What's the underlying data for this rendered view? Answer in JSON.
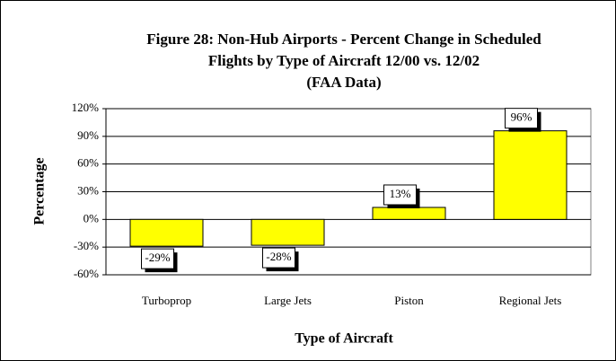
{
  "chart_data": {
    "type": "bar",
    "title": [
      "Figure 28:  Non-Hub Airports - Percent Change in Scheduled",
      "Flights by Type of Aircraft  12/00 vs. 12/02",
      "(FAA Data)"
    ],
    "y_label": "Percentage",
    "x_label": "Type of Aircraft",
    "categories": [
      "Turboprop",
      "Large Jets",
      "Piston",
      "Regional Jets"
    ],
    "values": [
      -29,
      -28,
      13,
      96
    ],
    "value_labels": [
      "-29%",
      "-28%",
      "13%",
      "96%"
    ],
    "color": "#ffff00",
    "ylim": [
      -60,
      120
    ],
    "yticks": [
      {
        "value": -60,
        "label": "-60%"
      },
      {
        "value": -30,
        "label": "-30%"
      },
      {
        "value": 0,
        "label": "0%"
      },
      {
        "value": 30,
        "label": "30%"
      },
      {
        "value": 60,
        "label": "60%"
      },
      {
        "value": 90,
        "label": "90%"
      },
      {
        "value": 120,
        "label": "120%"
      }
    ],
    "grid": true
  }
}
